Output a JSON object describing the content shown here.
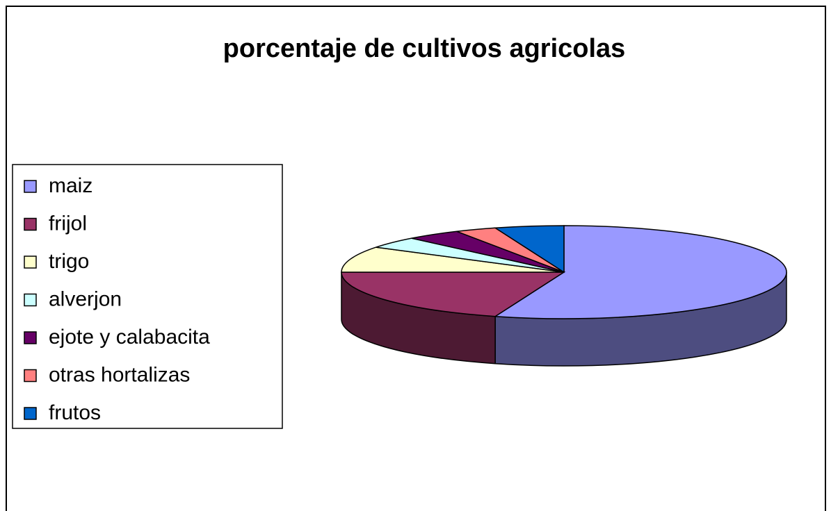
{
  "chart_data": {
    "type": "pie",
    "title": "porcentaje de cultivos agricolas",
    "categories": [
      "maiz",
      "frijol",
      "trigo",
      "alverjon",
      "ejote y calabacita",
      "otras hortalizas",
      "frutos"
    ],
    "values": [
      55,
      20,
      9,
      4,
      4,
      3,
      5
    ],
    "colors": [
      "#9999ff",
      "#993366",
      "#ffffcc",
      "#ccffff",
      "#660066",
      "#ff8080",
      "#0066cc"
    ],
    "legend": "left",
    "three_d": true
  }
}
